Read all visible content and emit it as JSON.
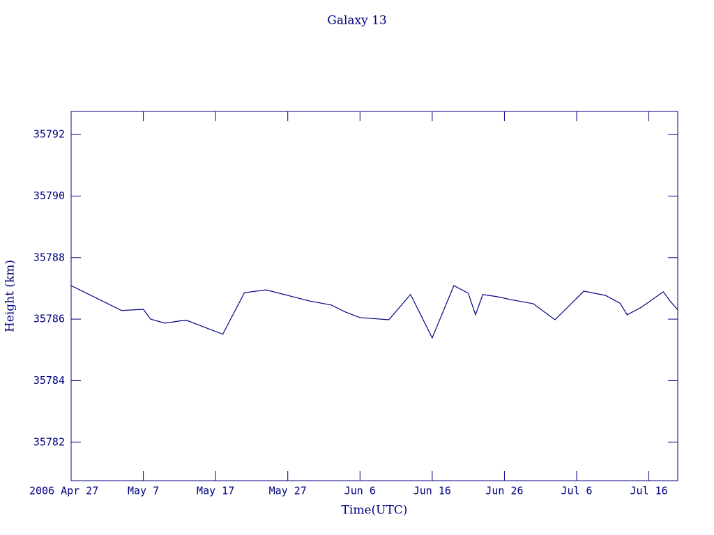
{
  "chart_data": {
    "type": "line",
    "title": "Galaxy 13",
    "xlabel": "Time(UTC)",
    "ylabel": "Height (km)",
    "color": "#000080",
    "x": [
      "2006-04-27",
      "2006-05-04",
      "2006-05-07",
      "2006-05-08",
      "2006-05-10",
      "2006-05-12",
      "2006-05-13",
      "2006-05-18",
      "2006-05-21",
      "2006-05-24",
      "2006-05-30",
      "2006-06-02",
      "2006-06-04",
      "2006-06-06",
      "2006-06-10",
      "2006-06-13",
      "2006-06-16",
      "2006-06-19",
      "2006-06-21",
      "2006-06-22",
      "2006-06-23",
      "2006-06-25",
      "2006-06-27",
      "2006-06-30",
      "2006-07-03",
      "2006-07-07",
      "2006-07-10",
      "2006-07-12",
      "2006-07-13",
      "2006-07-15",
      "2006-07-18",
      "2006-07-19",
      "2006-07-20"
    ],
    "values": [
      35787.09,
      35786.28,
      35786.32,
      35786.0,
      35785.87,
      35785.94,
      35785.96,
      35785.51,
      35786.86,
      35786.95,
      35786.59,
      35786.46,
      35786.23,
      35786.05,
      35785.98,
      35786.8,
      35785.39,
      35787.09,
      35786.84,
      35786.14,
      35786.8,
      35786.73,
      35786.63,
      35786.5,
      35785.98,
      35786.91,
      35786.77,
      35786.52,
      35786.14,
      35786.39,
      35786.89,
      35786.57,
      35786.3
    ],
    "xlim": [
      "2006-04-27",
      "2006-07-20"
    ],
    "xticks": [
      {
        "value": "2006-04-27",
        "label": "2006 Apr 27"
      },
      {
        "value": "2006-05-07",
        "label": "May 7"
      },
      {
        "value": "2006-05-17",
        "label": "May 17"
      },
      {
        "value": "2006-05-27",
        "label": "May 27"
      },
      {
        "value": "2006-06-06",
        "label": "Jun 6"
      },
      {
        "value": "2006-06-16",
        "label": "Jun 16"
      },
      {
        "value": "2006-06-26",
        "label": "Jun 26"
      },
      {
        "value": "2006-07-06",
        "label": "Jul 6"
      },
      {
        "value": "2006-07-16",
        "label": "Jul 16"
      }
    ],
    "ylim": [
      35780.75,
      35792.75
    ],
    "yticks": [
      35782,
      35784,
      35786,
      35788,
      35790,
      35792
    ]
  }
}
